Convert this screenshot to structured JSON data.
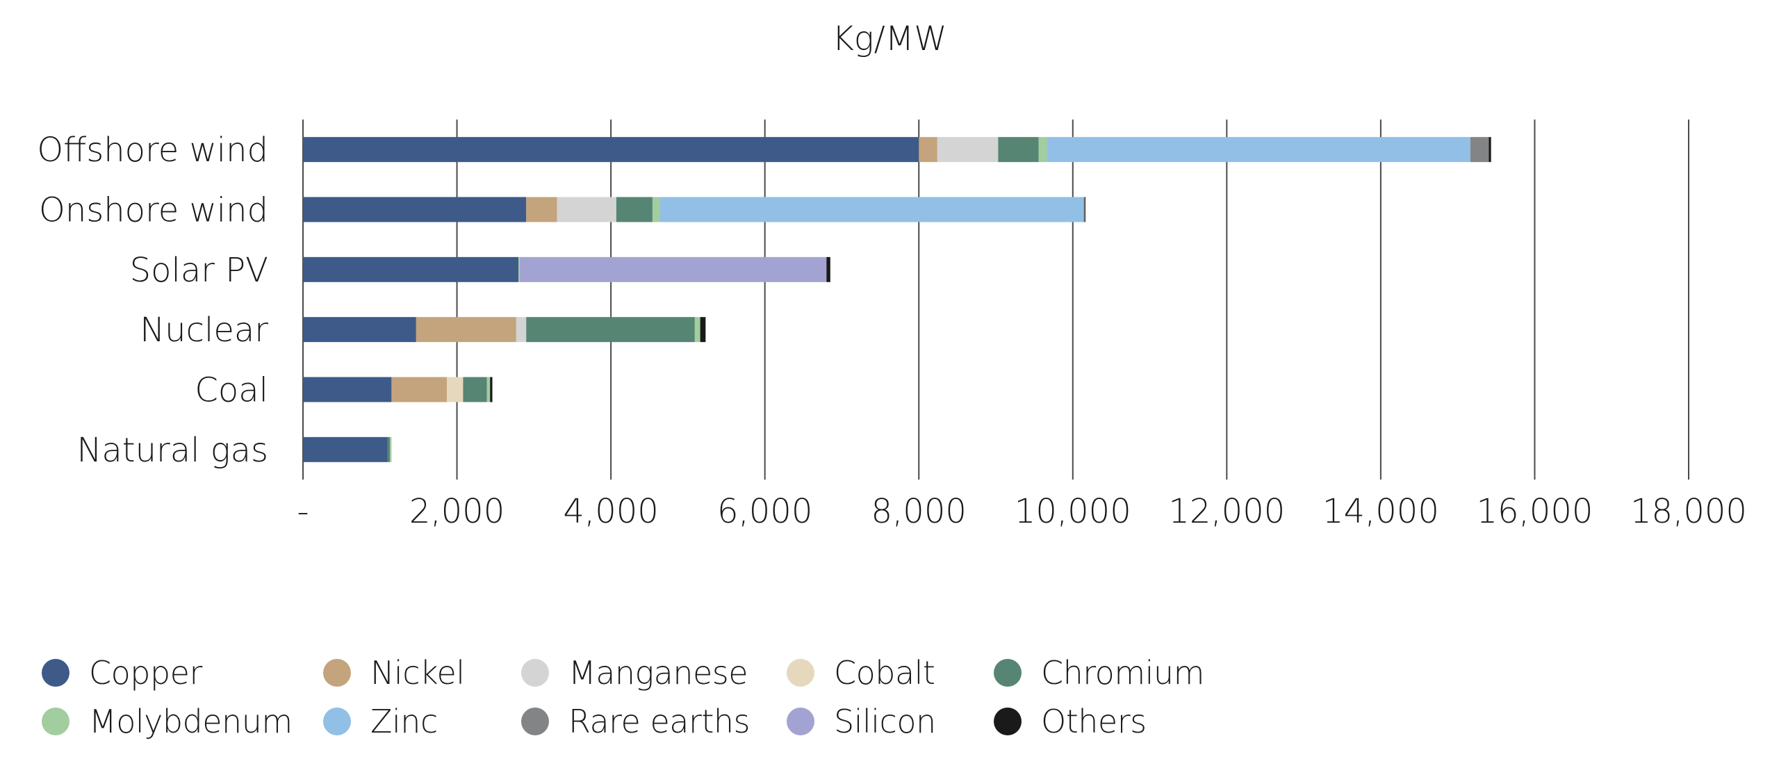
{
  "chart_data": {
    "type": "bar",
    "orientation": "horizontal",
    "stacked": true,
    "title": "Kg/MW",
    "xlabel": "",
    "ylabel": "",
    "xlim": [
      0,
      18000
    ],
    "x_ticks": [
      0,
      2000,
      4000,
      6000,
      8000,
      10000,
      12000,
      14000,
      16000,
      18000
    ],
    "x_tick_labels": [
      "-",
      "2,000",
      "4,000",
      "6,000",
      "8,000",
      "10,000",
      "12,000",
      "14,000",
      "16,000",
      "18,000"
    ],
    "grid": "vertical",
    "legend_position": "bottom",
    "categories": [
      "Offshore wind",
      "Onshore wind",
      "Solar PV",
      "Nuclear",
      "Coal",
      "Natural gas"
    ],
    "series": [
      {
        "name": "Copper",
        "color": "#3d5a89",
        "values": [
          8000,
          2900,
          2800,
          1470,
          1150,
          1100
        ]
      },
      {
        "name": "Nickel",
        "color": "#c4a47c",
        "values": [
          240,
          400,
          0,
          1300,
          720,
          0
        ]
      },
      {
        "name": "Manganese",
        "color": "#d3d4d3",
        "values": [
          790,
          770,
          0,
          130,
          0,
          0
        ]
      },
      {
        "name": "Cobalt",
        "color": "#e6d8bd",
        "values": [
          0,
          0,
          0,
          0,
          210,
          0
        ]
      },
      {
        "name": "Chromium",
        "color": "#578574",
        "values": [
          525,
          470,
          0,
          2190,
          310,
          30
        ]
      },
      {
        "name": "Molybdenum",
        "color": "#a2cd9e",
        "values": [
          109,
          100,
          15,
          70,
          40,
          20
        ]
      },
      {
        "name": "Zinc",
        "color": "#92bfe6",
        "values": [
          5500,
          5500,
          0,
          0,
          0,
          0
        ]
      },
      {
        "name": "Rare earths",
        "color": "#838485",
        "values": [
          239,
          14,
          0,
          0,
          0,
          0
        ]
      },
      {
        "name": "Silicon",
        "color": "#a3a3d3",
        "values": [
          0,
          0,
          3985,
          0,
          0,
          0
        ]
      },
      {
        "name": "Others",
        "color": "#1a1a1a",
        "values": [
          30,
          10,
          50,
          70,
          30,
          0
        ]
      }
    ]
  }
}
